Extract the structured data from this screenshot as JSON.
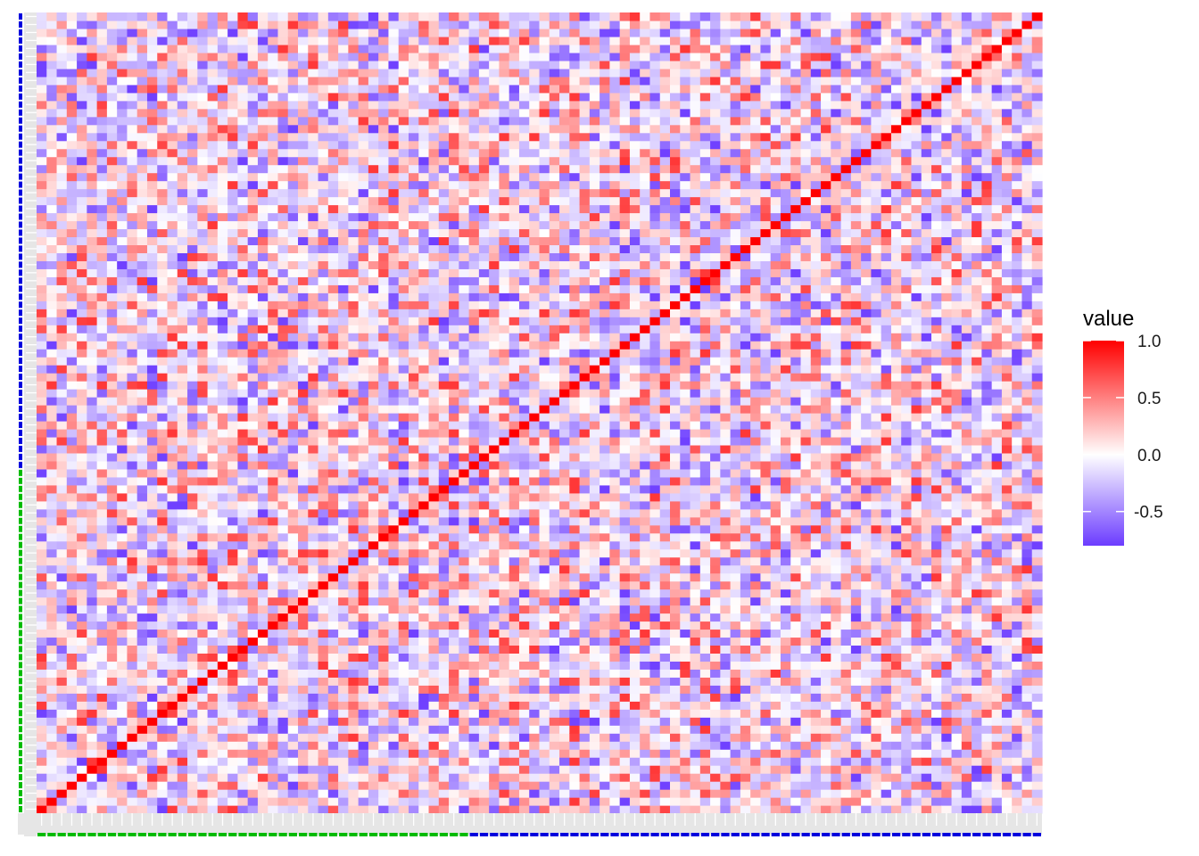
{
  "chart_data": {
    "type": "heatmap",
    "n": 100,
    "title": "",
    "xlabel": "",
    "ylabel": "",
    "diagonal_value": 1.0,
    "value_range": [
      -0.8,
      1.0
    ],
    "group_split": 43,
    "groups": [
      {
        "from": 1,
        "to": 43,
        "color": "#00bb00"
      },
      {
        "from": 44,
        "to": 100,
        "color": "#0000dd"
      }
    ],
    "legend": {
      "title": "value",
      "placement": "right",
      "ticks": [
        {
          "value": 1.0,
          "label": "1.0"
        },
        {
          "value": 0.5,
          "label": "0.5"
        },
        {
          "value": 0.0,
          "label": "0.0"
        },
        {
          "value": -0.5,
          "label": "-0.5"
        }
      ]
    },
    "colors": {
      "low": "#6c3cff",
      "mid": "#ffffff",
      "high": "#ff0000",
      "tick_strip": "#e6e6e6"
    }
  }
}
